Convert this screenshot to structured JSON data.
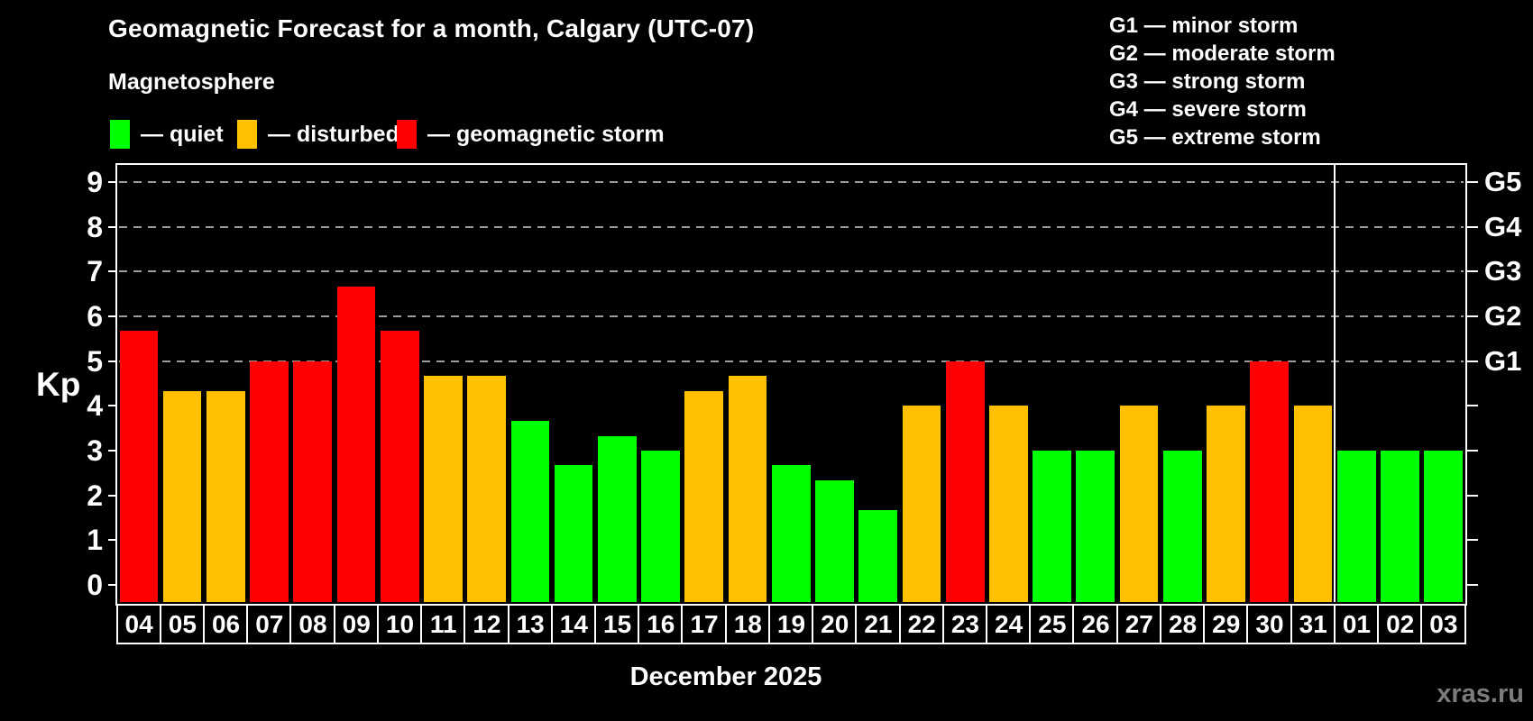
{
  "header": {
    "title": "Geomagnetic Forecast for a month, Calgary (UTC-07)",
    "subtitle": "Magnetosphere"
  },
  "legend": {
    "items": [
      {
        "key": "quiet",
        "label": "— quiet",
        "color": "#00ff00"
      },
      {
        "key": "disturbed",
        "label": "— disturbed",
        "color": "#ffc000"
      },
      {
        "key": "storm",
        "label": "— geomagnetic storm",
        "color": "#ff0000"
      }
    ]
  },
  "g_scale_legend": [
    "G1 — minor storm",
    "G2 — moderate storm",
    "G3 — strong storm",
    "G4 — severe storm",
    "G5 — extreme storm"
  ],
  "watermark": "xras.ru",
  "chart_data": {
    "type": "bar",
    "title": "Geomagnetic Forecast for a month, Calgary (UTC-07)",
    "xlabel": "December 2025",
    "ylabel": "Kp",
    "ylim": [
      0,
      9
    ],
    "y_ticks": [
      0,
      1,
      2,
      3,
      4,
      5,
      6,
      7,
      8,
      9
    ],
    "gridlines_at": [
      5,
      6,
      7,
      8,
      9
    ],
    "grid": "dashed horizontal at storm levels only",
    "legend_position": "top",
    "right_axis_labels": [
      {
        "label": "G5",
        "kp": 9
      },
      {
        "label": "G4",
        "kp": 8
      },
      {
        "label": "G3",
        "kp": 7
      },
      {
        "label": "G2",
        "kp": 6
      },
      {
        "label": "G1",
        "kp": 5
      }
    ],
    "colors": {
      "quiet": "#00ff00",
      "disturbed": "#ffc000",
      "storm": "#ff0000"
    },
    "month_divider_after_index": 27,
    "bars": [
      {
        "date": "04",
        "kp": 5.67,
        "level": "storm"
      },
      {
        "date": "05",
        "kp": 4.33,
        "level": "disturbed"
      },
      {
        "date": "06",
        "kp": 4.33,
        "level": "disturbed"
      },
      {
        "date": "07",
        "kp": 5.0,
        "level": "storm"
      },
      {
        "date": "08",
        "kp": 5.0,
        "level": "storm"
      },
      {
        "date": "09",
        "kp": 6.67,
        "level": "storm"
      },
      {
        "date": "10",
        "kp": 5.67,
        "level": "storm"
      },
      {
        "date": "11",
        "kp": 4.67,
        "level": "disturbed"
      },
      {
        "date": "12",
        "kp": 4.67,
        "level": "disturbed"
      },
      {
        "date": "13",
        "kp": 3.67,
        "level": "quiet"
      },
      {
        "date": "14",
        "kp": 2.67,
        "level": "quiet"
      },
      {
        "date": "15",
        "kp": 3.33,
        "level": "quiet"
      },
      {
        "date": "16",
        "kp": 3.0,
        "level": "quiet"
      },
      {
        "date": "17",
        "kp": 4.33,
        "level": "disturbed"
      },
      {
        "date": "18",
        "kp": 4.67,
        "level": "disturbed"
      },
      {
        "date": "19",
        "kp": 2.67,
        "level": "quiet"
      },
      {
        "date": "20",
        "kp": 2.33,
        "level": "quiet"
      },
      {
        "date": "21",
        "kp": 1.67,
        "level": "quiet"
      },
      {
        "date": "22",
        "kp": 4.0,
        "level": "disturbed"
      },
      {
        "date": "23",
        "kp": 5.0,
        "level": "storm"
      },
      {
        "date": "24",
        "kp": 4.0,
        "level": "disturbed"
      },
      {
        "date": "25",
        "kp": 3.0,
        "level": "quiet"
      },
      {
        "date": "26",
        "kp": 3.0,
        "level": "quiet"
      },
      {
        "date": "27",
        "kp": 4.0,
        "level": "disturbed"
      },
      {
        "date": "28",
        "kp": 3.0,
        "level": "quiet"
      },
      {
        "date": "29",
        "kp": 4.0,
        "level": "disturbed"
      },
      {
        "date": "30",
        "kp": 5.0,
        "level": "storm"
      },
      {
        "date": "31",
        "kp": 4.0,
        "level": "disturbed"
      },
      {
        "date": "01",
        "kp": 3.0,
        "level": "quiet"
      },
      {
        "date": "02",
        "kp": 3.0,
        "level": "quiet"
      },
      {
        "date": "03",
        "kp": 3.0,
        "level": "quiet"
      }
    ]
  }
}
